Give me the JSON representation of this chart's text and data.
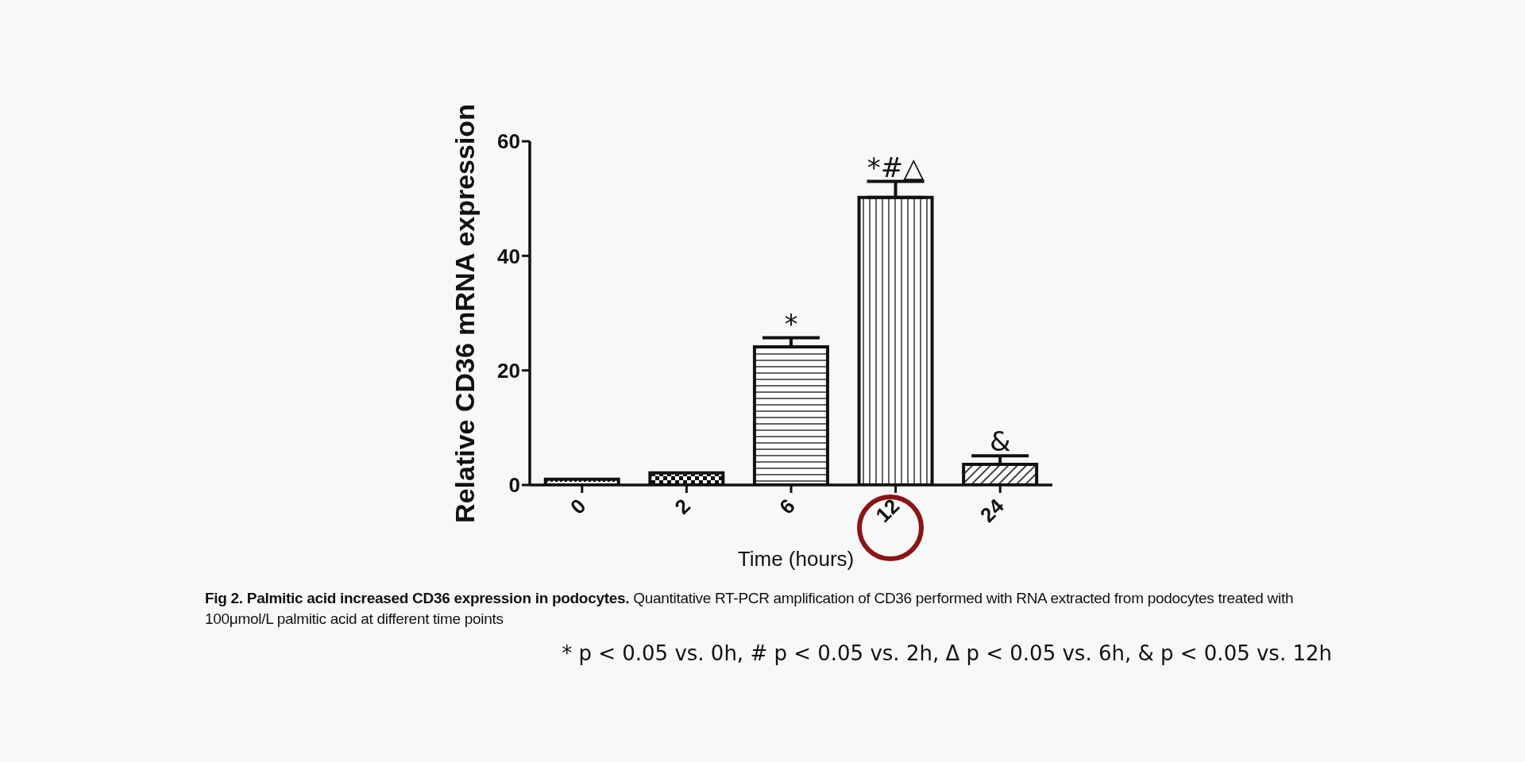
{
  "chart_data": {
    "type": "bar",
    "title": "Fig 2. Palmitic acid increased CD36 expression in podocytes.",
    "subtitle": "Quantitative RT-PCR amplification of CD36 performed with RNA extracted from podocytes treated with 100μmol/L palmitic acid at different time points",
    "xlabel": "Time (hours)",
    "ylabel": "Relative CD36 mRNA expression",
    "categories": [
      "0",
      "2",
      "6",
      "12",
      "24"
    ],
    "values": [
      1.0,
      2.1,
      24.1,
      50.2,
      3.6
    ],
    "errors": [
      null,
      null,
      1.6,
      2.8,
      1.5
    ],
    "color": "#111111",
    "ylim": [
      0,
      60
    ],
    "yticks": [
      0,
      20,
      40,
      60
    ],
    "grid": false,
    "legend": false,
    "annotations": [
      "*",
      "*#△",
      "&",
      "* p < 0.05 vs. 0h, # p < 0.05 vs. 2h, Δ p < 0.05 vs. 6h, & p < 0.05 vs. 12h"
    ]
  }
}
